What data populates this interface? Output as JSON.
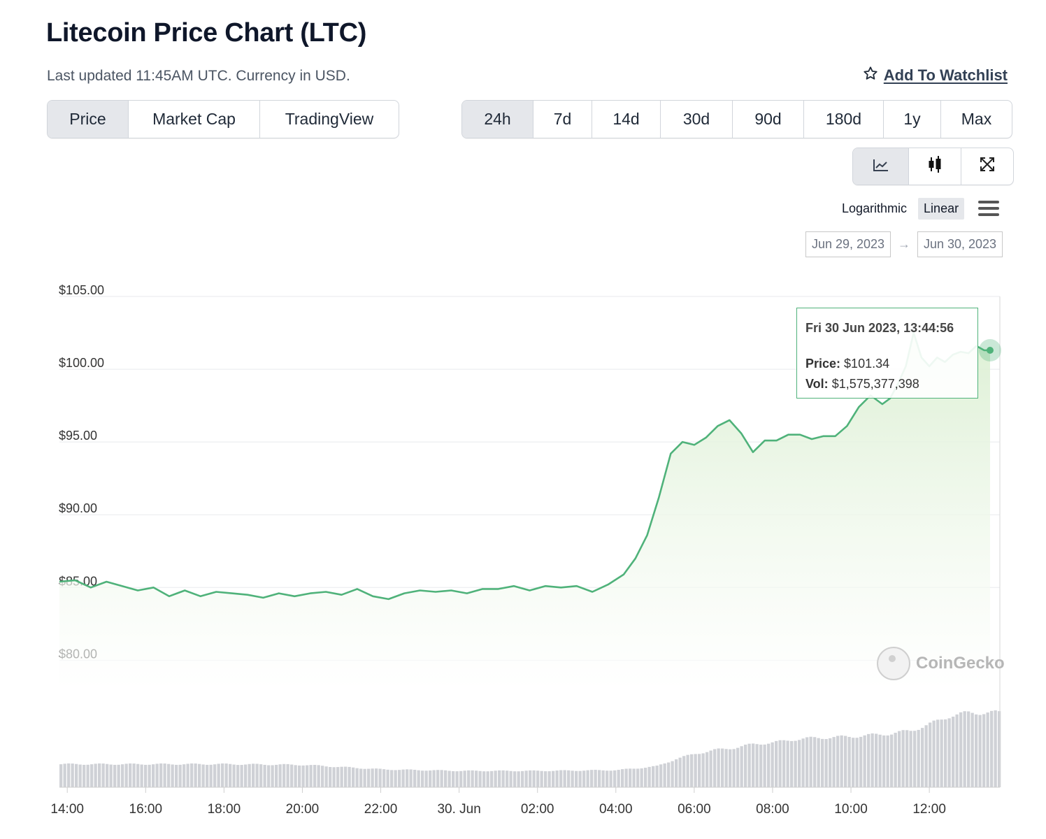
{
  "page": {
    "title": "Litecoin Price Chart (LTC)",
    "updated": "Last updated 11:45AM UTC. Currency in USD.",
    "watchlist_label": "Add To Watchlist"
  },
  "tabs": [
    {
      "label": "Price",
      "active": true
    },
    {
      "label": "Market Cap",
      "active": false
    },
    {
      "label": "TradingView",
      "active": false
    }
  ],
  "ranges": [
    {
      "label": "24h",
      "active": true
    },
    {
      "label": "7d",
      "active": false
    },
    {
      "label": "14d",
      "active": false
    },
    {
      "label": "30d",
      "active": false
    },
    {
      "label": "90d",
      "active": false
    },
    {
      "label": "180d",
      "active": false
    },
    {
      "label": "1y",
      "active": false
    },
    {
      "label": "Max",
      "active": false
    }
  ],
  "chart_types": [
    {
      "icon": "line-chart-icon",
      "active": true
    },
    {
      "icon": "candlestick-icon",
      "active": false
    },
    {
      "icon": "fullscreen-icon",
      "active": false
    }
  ],
  "scale": {
    "log_label": "Logarithmic",
    "linear_label": "Linear",
    "active": "linear"
  },
  "date_range": {
    "from": "Jun 29, 2023",
    "to": "Jun 30, 2023",
    "arrow": "→"
  },
  "tooltip": {
    "title": "Fri 30 Jun 2023, 13:44:56",
    "price_label": "Price:",
    "price_value": "$101.34",
    "vol_label": "Vol:",
    "vol_value": "$1,575,377,398"
  },
  "watermark": "CoinGecko",
  "colors": {
    "line": "#4fb27a",
    "fill_top": "#dbefd2",
    "volume": "#cfd1d6",
    "grid": "#e8eaed"
  },
  "chart_data": {
    "type": "area",
    "title": "",
    "xlabel": "",
    "ylabel": "",
    "ylim": [
      78,
      105
    ],
    "yticks": [
      {
        "value": 105,
        "label": "$105.00"
      },
      {
        "value": 100,
        "label": "$100.00"
      },
      {
        "value": 95,
        "label": "$95.00"
      },
      {
        "value": 90,
        "label": "$90.00"
      },
      {
        "value": 85,
        "label": "$85.00"
      },
      {
        "value": 80,
        "label": "$80.00"
      }
    ],
    "xlim": [
      -0.2,
      23.8
    ],
    "xticks": [
      {
        "value": 0,
        "label": "14:00"
      },
      {
        "value": 2,
        "label": "16:00"
      },
      {
        "value": 4,
        "label": "18:00"
      },
      {
        "value": 6,
        "label": "20:00"
      },
      {
        "value": 8,
        "label": "22:00"
      },
      {
        "value": 10,
        "label": "30. Jun"
      },
      {
        "value": 12,
        "label": "02:00"
      },
      {
        "value": 14,
        "label": "04:00"
      },
      {
        "value": 16,
        "label": "06:00"
      },
      {
        "value": 18,
        "label": "08:00"
      },
      {
        "value": 20,
        "label": "10:00"
      },
      {
        "value": 22,
        "label": "12:00"
      }
    ],
    "series": [
      {
        "x_hours_from_1400": [
          -0.2,
          0.2,
          0.6,
          1.0,
          1.4,
          1.8,
          2.2,
          2.6,
          3.0,
          3.4,
          3.8,
          4.2,
          4.6,
          5.0,
          5.4,
          5.8,
          6.2,
          6.6,
          7.0,
          7.4,
          7.8,
          8.2,
          8.6,
          9.0,
          9.4,
          9.8,
          10.2,
          10.6,
          11.0,
          11.4,
          11.8,
          12.2,
          12.6,
          13.0,
          13.4,
          13.8,
          14.2,
          14.5,
          14.8,
          15.1,
          15.4,
          15.7,
          16.0,
          16.3,
          16.6,
          16.9,
          17.2,
          17.5,
          17.8,
          18.1,
          18.4,
          18.7,
          19.0,
          19.3,
          19.6,
          19.9,
          20.2,
          20.5,
          20.8,
          21.0,
          21.2,
          21.4,
          21.6,
          21.8,
          22.0,
          22.2,
          22.4,
          22.6,
          22.8,
          23.0,
          23.2,
          23.4,
          23.55
        ],
        "values": [
          85.4,
          85.5,
          85.0,
          85.4,
          85.1,
          84.8,
          85.0,
          84.4,
          84.8,
          84.4,
          84.7,
          84.6,
          84.5,
          84.3,
          84.6,
          84.4,
          84.6,
          84.7,
          84.5,
          84.9,
          84.4,
          84.2,
          84.6,
          84.8,
          84.7,
          84.8,
          84.6,
          84.9,
          84.9,
          85.1,
          84.8,
          85.1,
          85.0,
          85.1,
          84.7,
          85.2,
          85.9,
          87.0,
          88.6,
          91.2,
          94.2,
          95.0,
          94.8,
          95.3,
          96.1,
          96.5,
          95.6,
          94.3,
          95.1,
          95.1,
          95.5,
          95.5,
          95.2,
          95.4,
          95.4,
          96.1,
          97.4,
          98.2,
          97.6,
          98.0,
          99.0,
          100.2,
          102.5,
          100.8,
          100.2,
          100.8,
          100.5,
          101.0,
          101.2,
          101.1,
          101.6,
          101.3,
          101.3
        ]
      }
    ],
    "volume": {
      "x_hours_from_1400": [
        -0.2,
        2,
        4,
        6,
        8,
        10,
        12,
        14,
        15,
        15.5,
        16,
        16.5,
        17,
        17.5,
        18,
        18.5,
        19,
        19.5,
        20,
        20.5,
        21,
        21.5,
        22,
        22.5,
        23,
        23.55
      ],
      "relative_height": [
        0.31,
        0.31,
        0.31,
        0.3,
        0.24,
        0.22,
        0.22,
        0.23,
        0.28,
        0.38,
        0.45,
        0.5,
        0.53,
        0.58,
        0.6,
        0.64,
        0.66,
        0.67,
        0.68,
        0.7,
        0.72,
        0.76,
        0.85,
        0.96,
        1.0,
        1.0
      ]
    }
  }
}
